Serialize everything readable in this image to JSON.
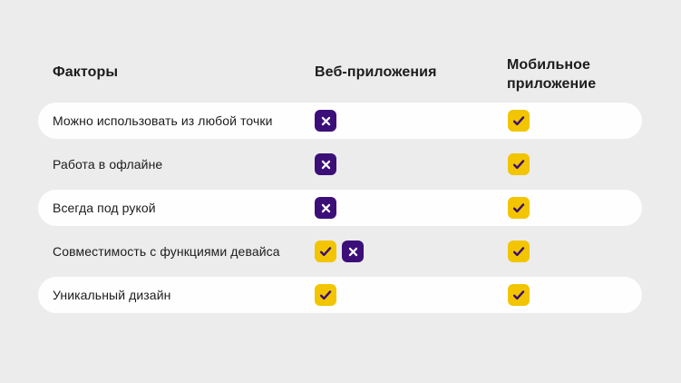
{
  "table": {
    "header": {
      "factors": "Факторы",
      "web": "Веб-приложения",
      "mobile": "Мобильное приложение"
    },
    "rows": [
      {
        "label": "Можно использовать из любой точки",
        "web": [
          "cross"
        ],
        "mobile": [
          "check"
        ]
      },
      {
        "label": "Работа в офлайне",
        "web": [
          "cross"
        ],
        "mobile": [
          "check"
        ]
      },
      {
        "label": "Всегда под рукой",
        "web": [
          "cross"
        ],
        "mobile": [
          "check"
        ]
      },
      {
        "label": "Совместимость с функциями девайса",
        "web": [
          "check",
          "cross"
        ],
        "mobile": [
          "check"
        ]
      },
      {
        "label": "Уникальный дизайн",
        "web": [
          "check"
        ],
        "mobile": [
          "check"
        ]
      }
    ]
  },
  "icons": {
    "check": "check-icon",
    "cross": "cross-icon"
  },
  "colors": {
    "background": "#ECECEC",
    "card": "#FEFEFE",
    "text": "#1C1C1C",
    "accent_yellow": "#F2C500",
    "accent_purple": "#3C0F78",
    "check_mark": "#3A0E76",
    "cross_mark": "#FFFFFF"
  }
}
